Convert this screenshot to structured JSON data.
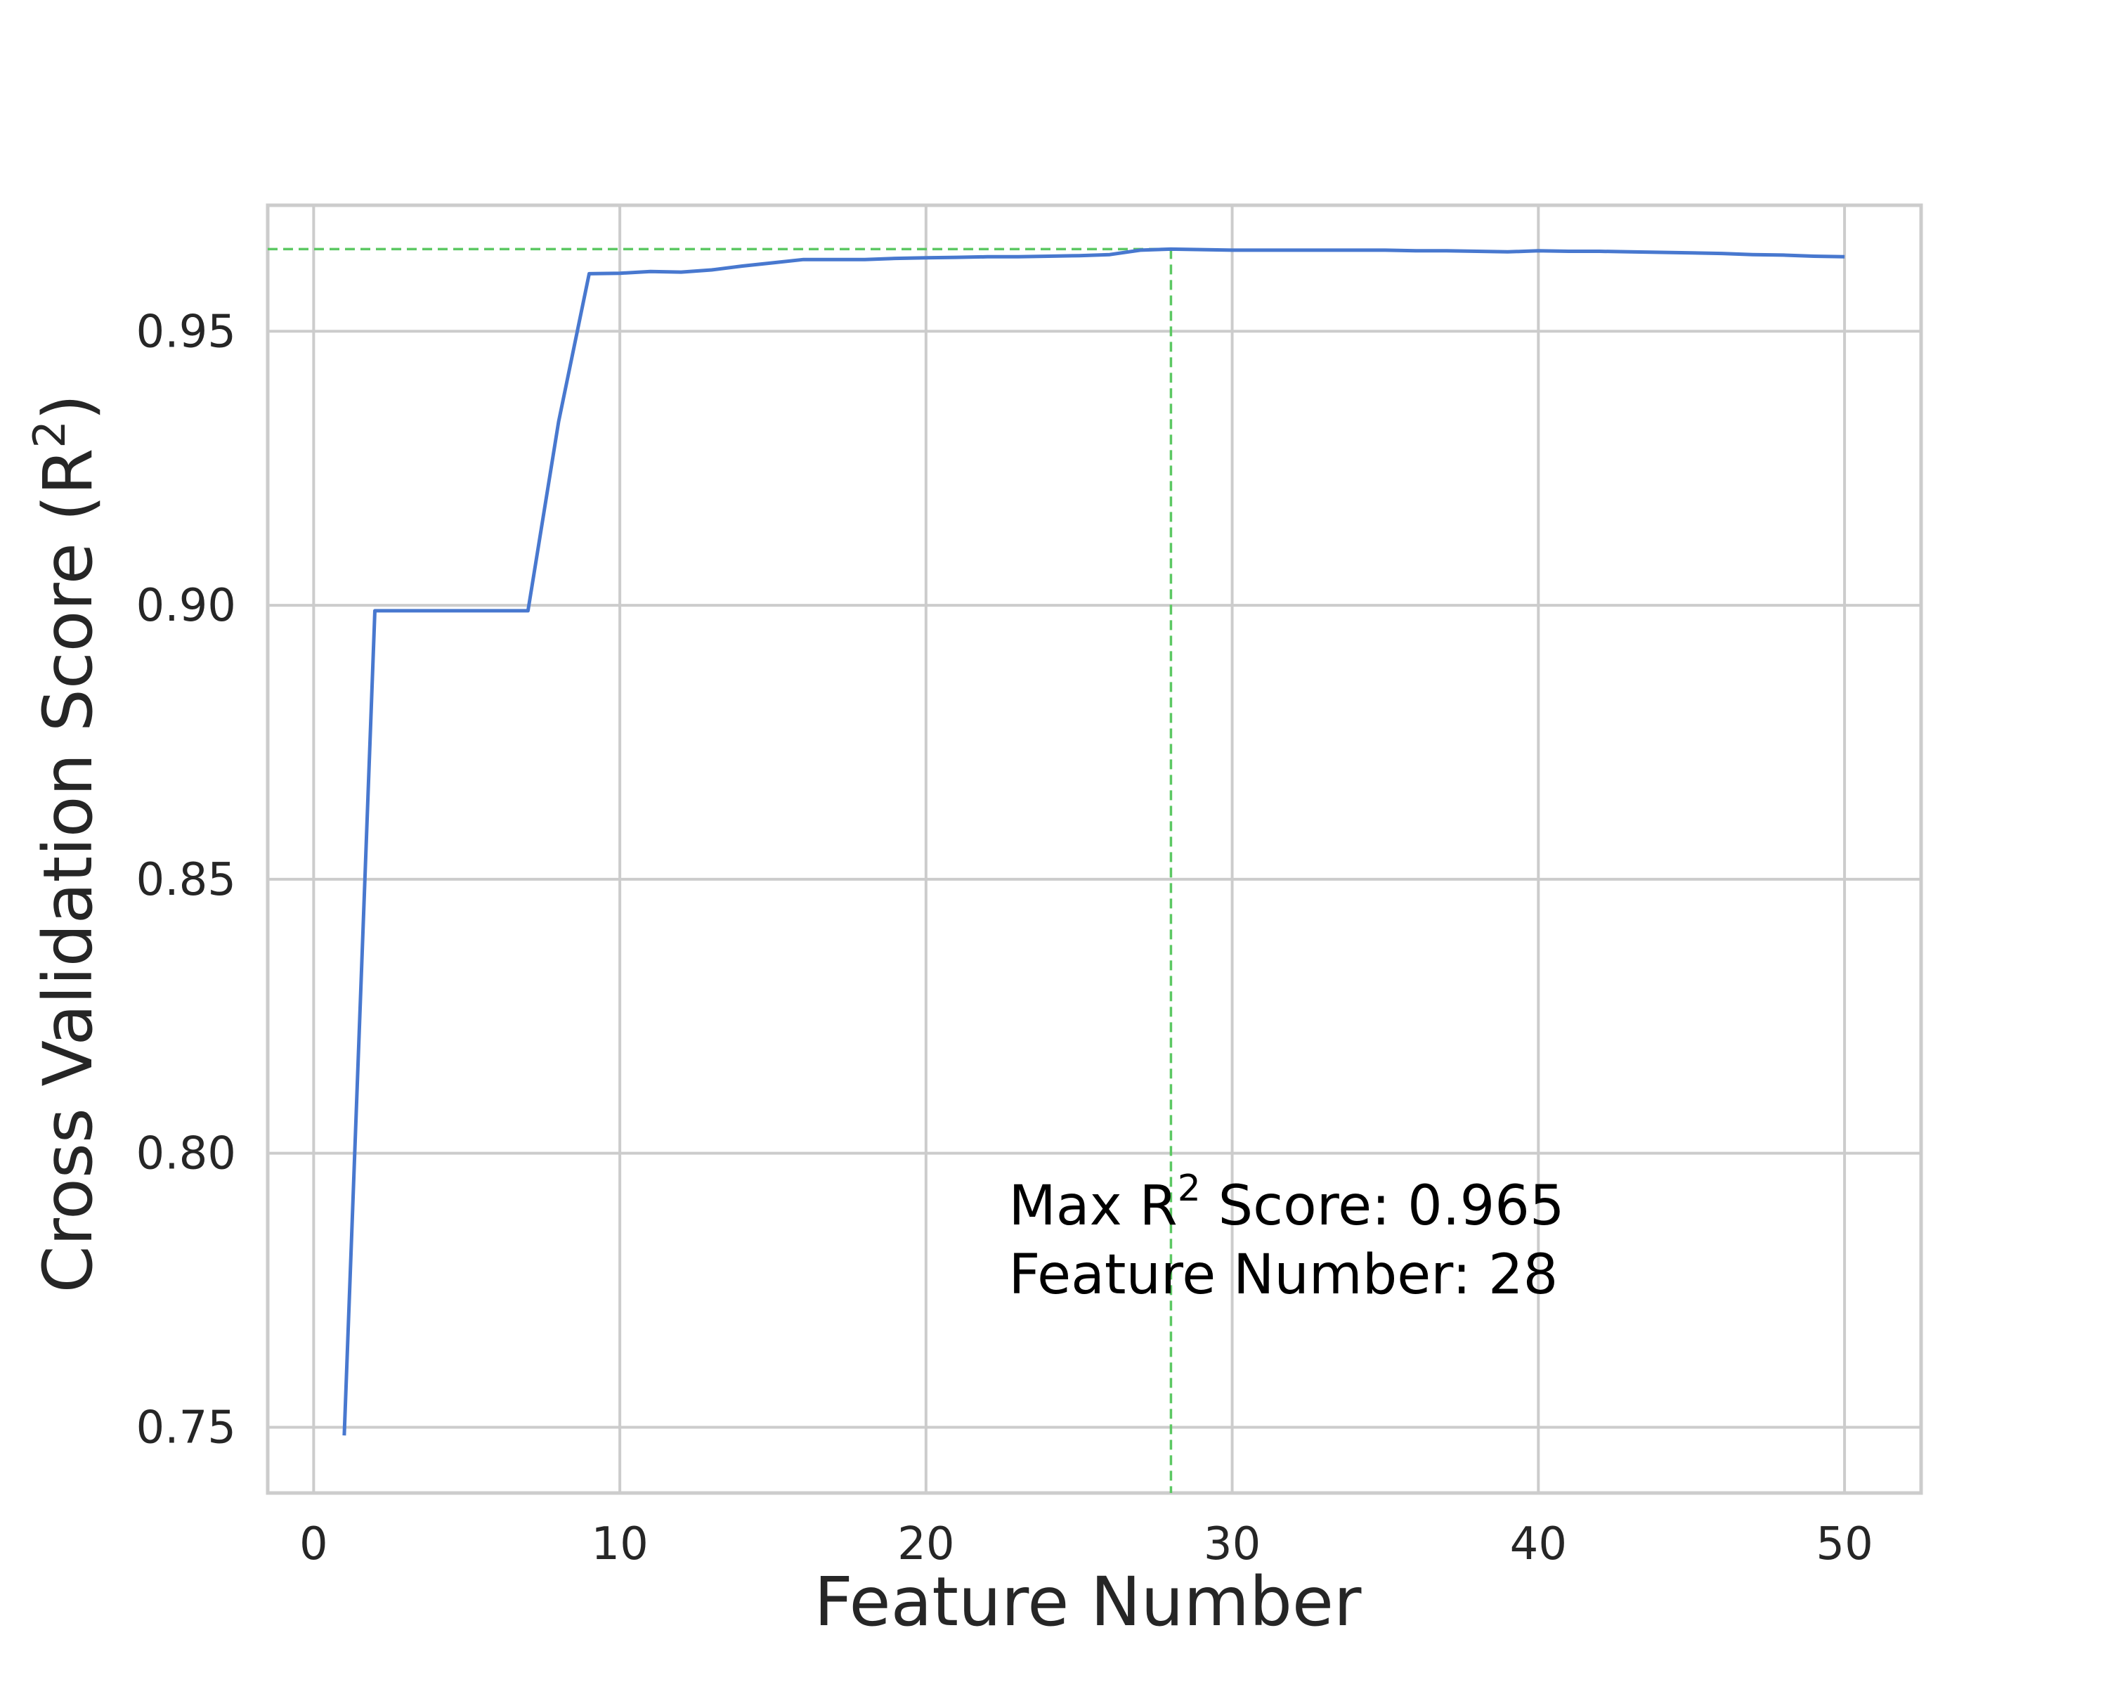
{
  "chart_data": {
    "type": "line",
    "xlabel": "Feature Number",
    "ylabel_text": "Cross Validation Score (R",
    "ylabel_sup": "2",
    "ylabel_close": ")",
    "xlim": [
      -1.5,
      52.5
    ],
    "ylim": [
      0.738,
      0.973
    ],
    "xticks": [
      0,
      10,
      20,
      30,
      40,
      50
    ],
    "xtick_labels": [
      "0",
      "10",
      "20",
      "30",
      "40",
      "50"
    ],
    "yticks": [
      0.75,
      0.8,
      0.85,
      0.9,
      0.95
    ],
    "ytick_labels": [
      "0.75",
      "0.80",
      "0.85",
      "0.90",
      "0.95"
    ],
    "grid": true,
    "series": [
      {
        "color": "#4878cf",
        "x": [
          1,
          2,
          3,
          4,
          5,
          6,
          7,
          8,
          9,
          10,
          11,
          12,
          13,
          14,
          15,
          16,
          17,
          18,
          19,
          20,
          21,
          22,
          23,
          24,
          25,
          26,
          27,
          28,
          29,
          30,
          31,
          32,
          33,
          34,
          35,
          36,
          37,
          38,
          39,
          40,
          41,
          42,
          43,
          44,
          45,
          46,
          47,
          48,
          49,
          50
        ],
        "y": [
          0.7485,
          0.899,
          0.899,
          0.899,
          0.899,
          0.899,
          0.899,
          0.9335,
          0.9605,
          0.9606,
          0.9609,
          0.9608,
          0.9612,
          0.9619,
          0.9625,
          0.9631,
          0.9631,
          0.9631,
          0.9633,
          0.9634,
          0.9635,
          0.9636,
          0.9636,
          0.9637,
          0.9638,
          0.964,
          0.9648,
          0.965,
          0.9649,
          0.9648,
          0.9648,
          0.9648,
          0.9648,
          0.9648,
          0.9648,
          0.9647,
          0.9647,
          0.9646,
          0.9645,
          0.9647,
          0.9646,
          0.9646,
          0.9645,
          0.9644,
          0.9643,
          0.9642,
          0.964,
          0.9639,
          0.9637,
          0.9636
        ]
      }
    ],
    "reference_lines": {
      "color": "#5cc863",
      "x": 28,
      "y": 0.965
    },
    "annotation": {
      "line1_prefix": "Max R",
      "line1_sup": "2",
      "line1_suffix": " Score: 0.965",
      "line2": "Feature Number: 28",
      "x": 22.7,
      "y": 0.787
    }
  }
}
